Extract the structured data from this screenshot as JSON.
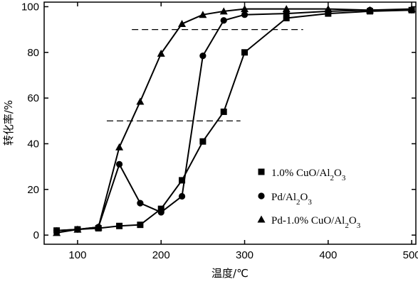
{
  "chart_data": {
    "type": "line",
    "title": "",
    "xlabel": "温度/℃",
    "ylabel": "转化率/%",
    "xlim": [
      60,
      505
    ],
    "ylim": [
      -4,
      102
    ],
    "xticks": [
      100,
      200,
      300,
      400,
      500
    ],
    "yticks": [
      0,
      20,
      40,
      60,
      80,
      100
    ],
    "grid": false,
    "legend_position": "lower-right",
    "series": [
      {
        "name": "1.0% CuO/Al2O3",
        "legend": {
          "pre": "1.0% CuO/Al",
          "s1": "2",
          "mid": "O",
          "s2": "3"
        },
        "marker": "square",
        "x": [
          75,
          100,
          125,
          150,
          175,
          200,
          225,
          250,
          275,
          300,
          350,
          400,
          450,
          500
        ],
        "y": [
          2,
          2.5,
          3,
          4,
          4.5,
          11.5,
          24,
          41,
          54,
          80,
          95,
          97,
          98,
          98.5
        ]
      },
      {
        "name": "Pd/Al2O3",
        "legend": {
          "pre": "Pd/Al",
          "s1": "2",
          "mid": "O",
          "s2": "3"
        },
        "marker": "circle",
        "x": [
          75,
          100,
          125,
          150,
          175,
          200,
          225,
          250,
          275,
          300,
          350,
          400,
          450,
          500
        ],
        "y": [
          2,
          2.5,
          3.5,
          31,
          14,
          10,
          17,
          78.5,
          94,
          96.5,
          97,
          98,
          98.5,
          98.5
        ]
      },
      {
        "name": "Pd-1.0% CuO/Al2O3",
        "legend": {
          "pre": "Pd-1.0% CuO/Al",
          "s1": "2",
          "mid": "O",
          "s2": "3"
        },
        "marker": "triangle",
        "x": [
          75,
          100,
          125,
          150,
          175,
          200,
          225,
          250,
          275,
          300,
          350,
          400,
          450,
          500
        ],
        "y": [
          1,
          2.5,
          3.5,
          38.5,
          58.5,
          79.5,
          92.5,
          96.5,
          98,
          99,
          99,
          99,
          98.5,
          99
        ]
      }
    ],
    "reference_lines": [
      {
        "y": 90,
        "x_from": 165,
        "x_to": 370
      },
      {
        "y": 50,
        "x_from": 135,
        "x_to": 295
      }
    ]
  }
}
